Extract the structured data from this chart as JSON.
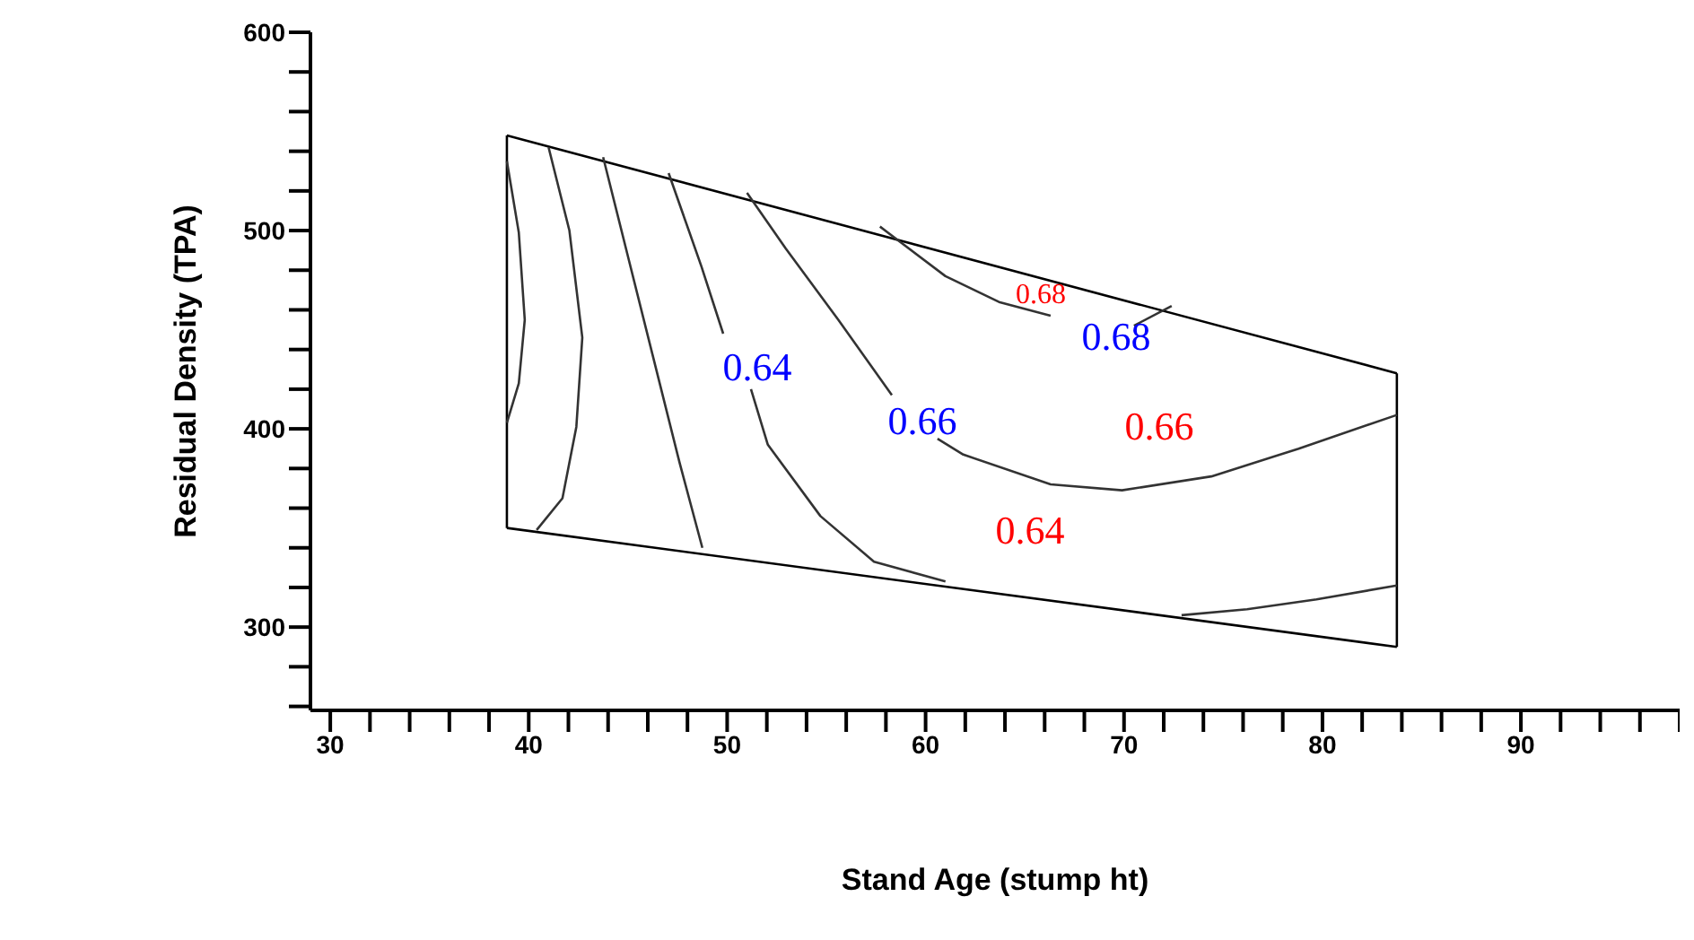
{
  "chart_data": {
    "type": "line",
    "xlabel": "Stand Age (stump ht)",
    "ylabel": "Residual Density (TPA)",
    "xlim": [
      29,
      98
    ],
    "xticks": [
      30,
      {
        "value": 32,
        "label": null
      },
      {
        "value": 34,
        "label": null
      },
      {
        "value": 36,
        "label": null
      },
      {
        "value": 38,
        "label": null
      },
      40,
      {
        "value": 42,
        "label": null
      },
      {
        "value": 44,
        "label": null
      },
      {
        "value": 46,
        "label": null
      },
      {
        "value": 48,
        "label": null
      },
      50,
      {
        "value": 52,
        "label": null
      },
      {
        "value": 54,
        "label": null
      },
      {
        "value": 56,
        "label": null
      },
      {
        "value": 58,
        "label": null
      },
      60,
      {
        "value": 62,
        "label": null
      },
      {
        "value": 64,
        "label": null
      },
      {
        "value": 66,
        "label": null
      },
      {
        "value": 68,
        "label": null
      },
      70,
      {
        "value": 72,
        "label": null
      },
      {
        "value": 74,
        "label": null
      },
      {
        "value": 76,
        "label": null
      },
      {
        "value": 78,
        "label": null
      },
      80,
      {
        "value": 82,
        "label": null
      },
      {
        "value": 84,
        "label": null
      },
      {
        "value": 86,
        "label": null
      },
      {
        "value": 88,
        "label": null
      },
      90,
      {
        "value": 92,
        "label": null
      },
      {
        "value": 94,
        "label": null
      },
      {
        "value": 96,
        "label": null
      },
      {
        "value": 98,
        "label": null
      }
    ],
    "ylim": [
      258,
      600
    ],
    "yticks": [
      {
        "value": 260,
        "label": null
      },
      {
        "value": 280,
        "label": null
      },
      300,
      {
        "value": 320,
        "label": null
      },
      {
        "value": 340,
        "label": null
      },
      {
        "value": 360,
        "label": null
      },
      {
        "value": 380,
        "label": null
      },
      400,
      {
        "value": 420,
        "label": null
      },
      {
        "value": 440,
        "label": null
      },
      {
        "value": 460,
        "label": null
      },
      {
        "value": 480,
        "label": null
      },
      500,
      {
        "value": 520,
        "label": null
      },
      {
        "value": 540,
        "label": null
      },
      {
        "value": 560,
        "label": null
      },
      {
        "value": 580,
        "label": null
      },
      600
    ],
    "grid": false,
    "marker": "none",
    "line_style": "solid",
    "series": [
      {
        "color": "#000000",
        "x": [
          38.9,
          83.75
        ],
        "values": [
          548,
          428
        ]
      },
      {
        "color": "#000000",
        "x": [
          38.9,
          83.75
        ],
        "values": [
          350,
          290
        ]
      },
      {
        "color": "#000000",
        "x": [
          38.9,
          38.9
        ],
        "values": [
          350,
          548
        ]
      },
      {
        "color": "#000000",
        "x": [
          83.75,
          83.75
        ],
        "values": [
          290,
          428
        ]
      },
      {
        "color": "#333333",
        "x": [
          38.9,
          39.5,
          39.8,
          39.5,
          38.9
        ],
        "values": [
          535,
          499,
          455,
          423,
          403
        ]
      },
      {
        "color": "#333333",
        "x": [
          41.0,
          42.05,
          42.7,
          42.4,
          41.7,
          40.4
        ],
        "values": [
          542,
          500,
          446,
          401,
          365,
          349
        ]
      },
      {
        "color": "#333333",
        "x": [
          43.75,
          44.9,
          46.25,
          47.6,
          48.75
        ],
        "values": [
          537,
          491,
          437,
          383,
          340
        ]
      },
      {
        "color": "#333333",
        "x": [
          47.05,
          48.7,
          49.8
        ],
        "values": [
          529,
          482,
          448
        ]
      },
      {
        "color": "#333333",
        "x": [
          51.2,
          52.05,
          54.7,
          57.4,
          61
        ],
        "values": [
          420,
          392,
          356,
          333,
          323
        ]
      },
      {
        "color": "#333333",
        "x": [
          51,
          52.95,
          55.6,
          58.3
        ],
        "values": [
          519,
          491,
          455,
          417
        ]
      },
      {
        "color": "#333333",
        "x": [
          60.6,
          61.9,
          66.3,
          69.9,
          74.4,
          78.8,
          83.75
        ],
        "values": [
          395,
          387,
          372,
          369,
          376,
          390,
          407
        ]
      },
      {
        "color": "#333333",
        "x": [
          57.7,
          61,
          63.7,
          66.3
        ],
        "values": [
          502,
          477,
          464,
          457
        ]
      },
      {
        "color": "#333333",
        "x": [
          70.5,
          72.4
        ],
        "values": [
          452,
          462
        ]
      },
      {
        "color": "#333333",
        "x": [
          72.9,
          76.2,
          79.7,
          83.75
        ],
        "values": [
          306,
          309,
          314,
          321
        ]
      }
    ],
    "annotations": [
      "0.64",
      "0.66",
      "0.68",
      "0.68",
      "0.66",
      "0.64"
    ]
  }
}
